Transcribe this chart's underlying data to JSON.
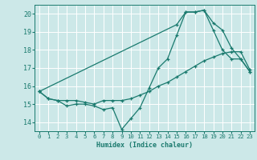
{
  "xlabel": "Humidex (Indice chaleur)",
  "xlim": [
    -0.5,
    23.5
  ],
  "ylim": [
    13.5,
    20.5
  ],
  "yticks": [
    14,
    15,
    16,
    17,
    18,
    19,
    20
  ],
  "xticks": [
    0,
    1,
    2,
    3,
    4,
    5,
    6,
    7,
    8,
    9,
    10,
    11,
    12,
    13,
    14,
    15,
    16,
    17,
    18,
    19,
    20,
    21,
    22,
    23
  ],
  "bg_color": "#cce8e8",
  "grid_color": "#ffffff",
  "line_color": "#1a7a6e",
  "line1_x": [
    0,
    1,
    2,
    3,
    4,
    5,
    6,
    7,
    8,
    9,
    10,
    11,
    12,
    13,
    14,
    15,
    16,
    17,
    18,
    19,
    20,
    21,
    22,
    23
  ],
  "line1_y": [
    15.7,
    15.3,
    15.2,
    14.9,
    15.0,
    15.0,
    14.9,
    14.7,
    14.8,
    13.6,
    14.2,
    14.8,
    15.9,
    17.0,
    17.5,
    18.8,
    20.1,
    20.1,
    20.2,
    19.1,
    18.0,
    17.5,
    17.5,
    16.8
  ],
  "line2_x": [
    0,
    1,
    2,
    3,
    4,
    5,
    6,
    7,
    8,
    9,
    10,
    11,
    12,
    13,
    14,
    15,
    16,
    17,
    18,
    19,
    20,
    21,
    22,
    23
  ],
  "line2_y": [
    15.7,
    15.3,
    15.2,
    15.2,
    15.2,
    15.1,
    15.0,
    15.2,
    15.2,
    15.2,
    15.3,
    15.5,
    15.7,
    16.0,
    16.2,
    16.5,
    16.8,
    17.1,
    17.4,
    17.6,
    17.8,
    17.9,
    17.9,
    16.9
  ],
  "line3_x": [
    0,
    15,
    16,
    17,
    18,
    19,
    20,
    21,
    22,
    23
  ],
  "line3_y": [
    15.7,
    19.4,
    20.1,
    20.1,
    20.2,
    19.5,
    19.1,
    18.1,
    17.5,
    16.8
  ]
}
